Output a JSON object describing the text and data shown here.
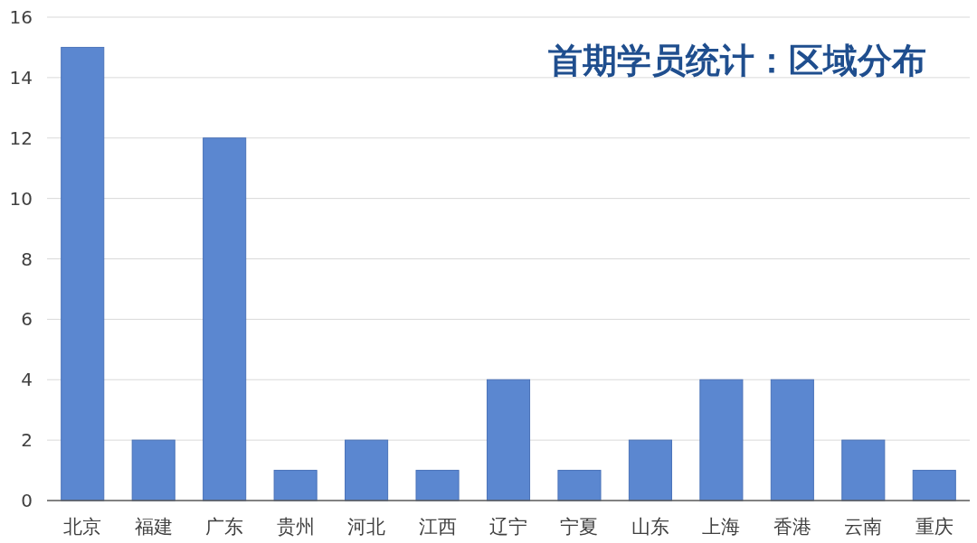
{
  "chart_data": {
    "type": "bar",
    "title": "首期学员统计：区域分布",
    "categories": [
      "北京",
      "福建",
      "广东",
      "贵州",
      "河北",
      "江西",
      "辽宁",
      "宁夏",
      "山东",
      "上海",
      "香港",
      "云南",
      "重庆"
    ],
    "values": [
      15,
      2,
      12,
      1,
      2,
      1,
      4,
      1,
      2,
      4,
      4,
      2,
      1
    ],
    "color": "#5b87d0",
    "ylim": [
      0,
      16
    ],
    "yticks": [
      0,
      2,
      4,
      6,
      8,
      10,
      12,
      14,
      16
    ],
    "grid": "y"
  }
}
